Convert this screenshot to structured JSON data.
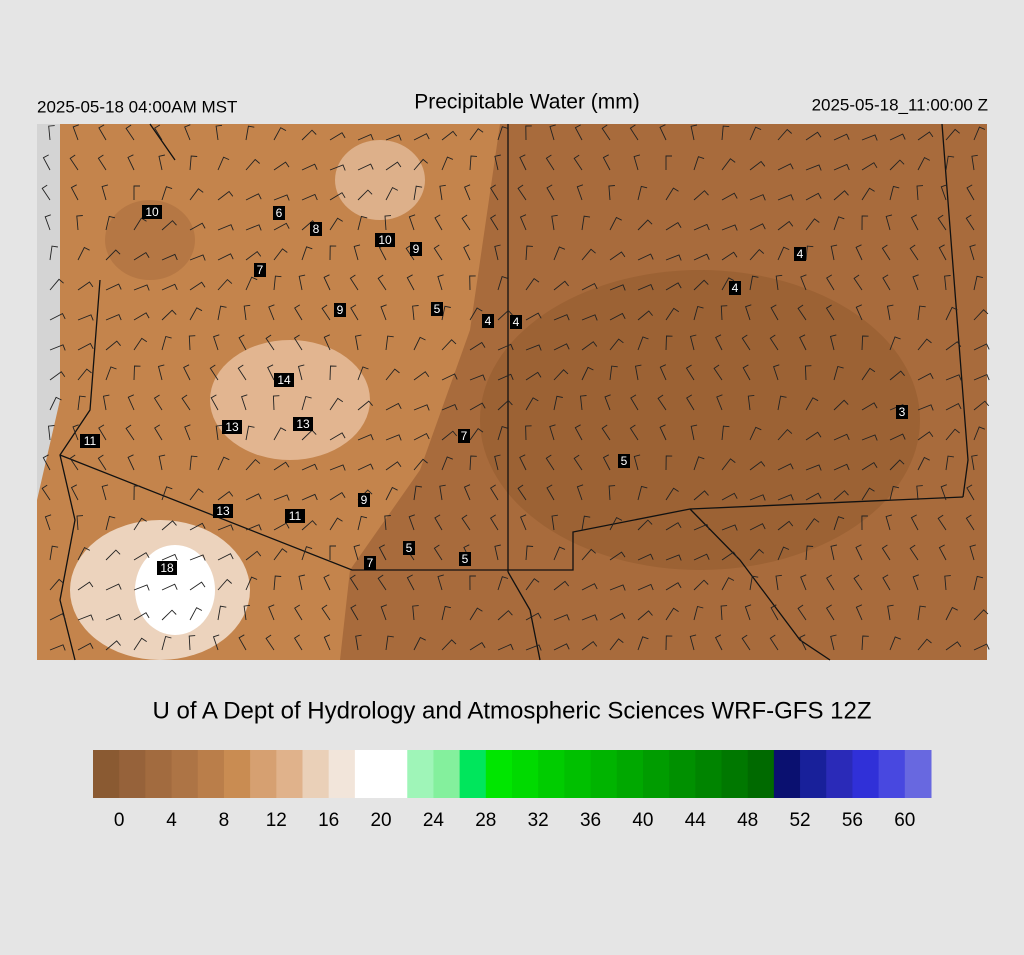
{
  "header": {
    "left": "2025-05-18 04:00AM MST",
    "title": "Precipitable Water (mm)",
    "right": "2025-05-18_11:00:00 Z"
  },
  "map": {
    "station_labels": [
      10,
      6,
      8,
      10,
      9,
      7,
      9,
      5,
      4,
      4,
      4,
      4,
      14,
      13,
      13,
      11,
      7,
      5,
      3,
      9,
      13,
      11,
      5,
      5,
      7,
      18
    ]
  },
  "credit": "U of A Dept of Hydrology and Atmospheric Sciences WRF-GFS 12Z",
  "colorbar": {
    "range": [
      -2,
      62
    ],
    "colors": [
      "#8a5a32",
      "#96623a",
      "#a26b3f",
      "#ad7445",
      "#ba7e4a",
      "#c98c52",
      "#d6a071",
      "#e0b28b",
      "#ead0b8",
      "#f2e5da",
      "#ffffff",
      "#ffffff",
      "#9ff5b8",
      "#84f09d",
      "#00e65c",
      "#00e600",
      "#00da00",
      "#00cc00",
      "#00c000",
      "#00b400",
      "#00a800",
      "#009c00",
      "#009000",
      "#008400",
      "#007800",
      "#006a00",
      "#0a1070",
      "#18209a",
      "#2a2ab8",
      "#3030d8",
      "#4848e0",
      "#6868e0"
    ],
    "ticks": [
      0,
      4,
      8,
      12,
      16,
      20,
      24,
      28,
      32,
      36,
      40,
      44,
      48,
      52,
      56,
      60
    ]
  }
}
